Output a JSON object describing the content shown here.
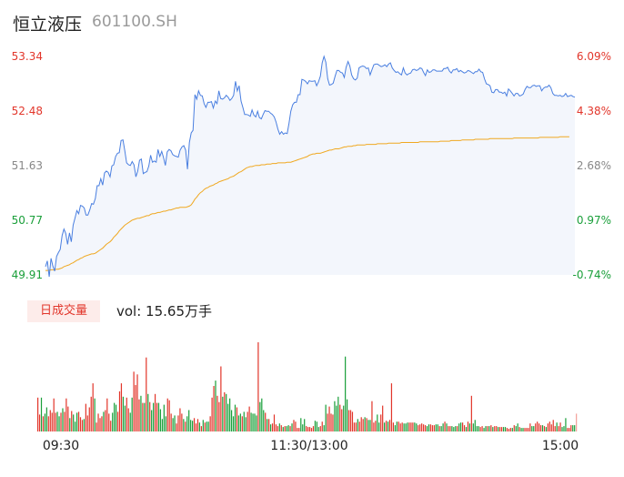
{
  "header": {
    "name": "恒立液压",
    "code": "601100.SH"
  },
  "volume_panel": {
    "tag": "日成交量",
    "label": "vol: 15.65万手"
  },
  "colors": {
    "up": "#e2362b",
    "down": "#1a9f3a",
    "neutral": "#888888",
    "price_line": "#4a7fe0",
    "avg_line": "#f0a820",
    "area": "#f3f6fc"
  },
  "chart_data": {
    "type": "line",
    "price_ticks": [
      "53.34",
      "52.48",
      "51.63",
      "50.77",
      "49.91"
    ],
    "pct_ticks": [
      "6.09%",
      "4.38%",
      "2.68%",
      "0.97%",
      "-0.74%"
    ],
    "time_ticks": [
      "09:30",
      "11:30/13:00",
      "15:00"
    ],
    "ylim": [
      49.91,
      53.34
    ],
    "series": [
      {
        "values": [
          50.04,
          50.13,
          49.88,
          50.17,
          50.05,
          49.97,
          50.2,
          50.26,
          50.31,
          50.53,
          50.63,
          50.56,
          50.39,
          50.57,
          50.43,
          50.69,
          50.8,
          50.92,
          50.87,
          51.0,
          50.99,
          50.96,
          50.85,
          50.85,
          50.93,
          51.03,
          51.02,
          51.11,
          51.31,
          51.31,
          51.42,
          51.32,
          51.51,
          51.54,
          51.52,
          51.45,
          51.62,
          51.64,
          51.77,
          51.82,
          51.83,
          52.02,
          52.03,
          51.86,
          51.67,
          51.64,
          51.63,
          51.69,
          51.64,
          51.45,
          51.54,
          51.71,
          51.73,
          51.5,
          51.52,
          51.53,
          51.62,
          51.79,
          51.68,
          51.7,
          51.68,
          51.88,
          51.77,
          51.85,
          51.75,
          51.63,
          51.84,
          51.88,
          51.86,
          51.8,
          51.78,
          51.77,
          51.76,
          51.87,
          51.92,
          51.94,
          51.87,
          51.57,
          51.99,
          52.14,
          52.18,
          52.74,
          52.67,
          52.8,
          52.73,
          52.72,
          52.6,
          52.54,
          52.62,
          52.62,
          52.63,
          52.53,
          52.64,
          52.6,
          52.8,
          52.68,
          52.67,
          52.69,
          52.73,
          52.7,
          52.65,
          52.68,
          52.73,
          52.95,
          52.8,
          52.88,
          52.64,
          52.54,
          52.43,
          52.43,
          52.42,
          52.4,
          52.5,
          52.42,
          52.39,
          52.48,
          52.38,
          52.36,
          52.43,
          52.49,
          52.48,
          52.48,
          52.45,
          52.43,
          52.39,
          52.31,
          52.2,
          52.12,
          52.16,
          52.12,
          52.14,
          52.13,
          52.29,
          52.48,
          52.58,
          52.62,
          52.62,
          52.74,
          52.74,
          52.98,
          52.97,
          52.95,
          52.91,
          52.96,
          52.95,
          52.95,
          52.96,
          52.88,
          52.94,
          53.03,
          53.24,
          53.34,
          53.25,
          52.99,
          52.89,
          52.9,
          52.92,
          53.03,
          53.12,
          53.12,
          53.09,
          53.08,
          53.01,
          53.17,
          53.26,
          53.19,
          53.05,
          52.99,
          52.97,
          53.0,
          53.16,
          53.18,
          53.19,
          53.18,
          53.15,
          53.16,
          53.05,
          53.13,
          53.21,
          53.22,
          53.22,
          53.2,
          53.18,
          53.19,
          53.21,
          53.18,
          53.22,
          53.24,
          53.16,
          53.12,
          53.09,
          53.1,
          53.07,
          53.05,
          53.16,
          53.08,
          53.05,
          53.07,
          53.08,
          53.13,
          53.14,
          53.12,
          53.13,
          53.16,
          53.15,
          53.09,
          53.04,
          53.13,
          53.09,
          53.1,
          53.13,
          53.13,
          53.11,
          53.11,
          53.11,
          53.11,
          53.15,
          53.15,
          53.17,
          53.11,
          53.08,
          53.13,
          53.13,
          53.15,
          53.1,
          53.12,
          53.1,
          53.08,
          53.09,
          53.12,
          53.11,
          53.09,
          53.07,
          53.1,
          53.1,
          53.14,
          53.1,
          53.09,
          52.99,
          52.91,
          52.9,
          52.88,
          52.78,
          52.77,
          52.82,
          52.82,
          52.78,
          52.78,
          52.76,
          52.78,
          52.72,
          52.83,
          52.8,
          52.76,
          52.72,
          52.76,
          52.76,
          52.72,
          52.73,
          52.75,
          52.82,
          52.87,
          52.85,
          52.85,
          52.88,
          52.89,
          52.87,
          52.88,
          52.88,
          52.8,
          52.84,
          52.86,
          52.86,
          52.89,
          52.85,
          52.76,
          52.73,
          52.73,
          52.72,
          52.73,
          52.71,
          52.72,
          52.76,
          52.71,
          52.72,
          52.73,
          52.71,
          52.7
        ]
      },
      {
        "values": [
          49.98,
          49.98,
          49.98,
          49.99,
          49.99,
          49.99,
          50.0,
          50.0,
          50.01,
          50.02,
          50.04,
          50.05,
          50.06,
          50.07,
          50.09,
          50.1,
          50.12,
          50.14,
          50.15,
          50.17,
          50.18,
          50.2,
          50.21,
          50.22,
          50.23,
          50.24,
          50.24,
          50.25,
          50.27,
          50.29,
          50.31,
          50.33,
          50.36,
          50.39,
          50.41,
          50.43,
          50.46,
          50.5,
          50.53,
          50.56,
          50.6,
          50.63,
          50.66,
          50.69,
          50.71,
          50.73,
          50.75,
          50.77,
          50.78,
          50.79,
          50.8,
          50.8,
          50.81,
          50.82,
          50.83,
          50.84,
          50.84,
          50.86,
          50.87,
          50.87,
          50.88,
          50.89,
          50.89,
          50.9,
          50.91,
          50.91,
          50.92,
          50.93,
          50.93,
          50.94,
          50.95,
          50.96,
          50.96,
          50.97,
          50.97,
          50.97,
          50.97,
          50.98,
          50.99,
          51.01,
          51.05,
          51.1,
          51.13,
          51.17,
          51.2,
          51.22,
          51.25,
          51.27,
          51.28,
          51.3,
          51.31,
          51.32,
          51.34,
          51.35,
          51.37,
          51.38,
          51.39,
          51.4,
          51.41,
          51.42,
          51.44,
          51.45,
          51.46,
          51.48,
          51.5,
          51.52,
          51.53,
          51.55,
          51.57,
          51.59,
          51.6,
          51.61,
          51.61,
          51.62,
          51.63,
          51.63,
          51.63,
          51.64,
          51.64,
          51.64,
          51.65,
          51.65,
          51.65,
          51.66,
          51.66,
          51.66,
          51.67,
          51.67,
          51.67,
          51.67,
          51.67,
          51.68,
          51.68,
          51.68,
          51.69,
          51.7,
          51.71,
          51.72,
          51.73,
          51.74,
          51.75,
          51.76,
          51.77,
          51.79,
          51.8,
          51.81,
          51.81,
          51.82,
          51.82,
          51.82,
          51.83,
          51.84,
          51.85,
          51.86,
          51.87,
          51.87,
          51.88,
          51.89,
          51.89,
          51.89,
          51.9,
          51.91,
          51.92,
          51.92,
          51.93,
          51.93,
          51.93,
          51.94,
          51.94,
          51.95,
          51.95,
          51.95,
          51.95,
          51.95,
          51.96,
          51.96,
          51.96,
          51.96,
          51.96,
          51.96,
          51.97,
          51.97,
          51.97,
          51.97,
          51.97,
          51.97,
          51.98,
          51.98,
          51.98,
          51.98,
          51.98,
          51.98,
          51.98,
          51.99,
          51.99,
          51.99,
          51.99,
          51.99,
          51.99,
          51.99,
          51.99,
          51.99,
          51.99,
          52.0,
          52.0,
          52.0,
          52.0,
          52.0,
          52.0,
          52.0,
          52.0,
          52.0,
          52.0,
          52.0,
          52.01,
          52.01,
          52.01,
          52.01,
          52.01,
          52.01,
          52.02,
          52.02,
          52.02,
          52.02,
          52.02,
          52.02,
          52.03,
          52.03,
          52.03,
          52.03,
          52.03,
          52.03,
          52.03,
          52.04,
          52.04,
          52.04,
          52.04,
          52.04,
          52.04,
          52.04,
          52.04,
          52.05,
          52.05,
          52.05,
          52.05,
          52.05,
          52.05,
          52.05,
          52.05,
          52.05,
          52.05,
          52.05,
          52.05,
          52.05,
          52.06,
          52.06,
          52.06,
          52.06,
          52.06,
          52.06,
          52.06,
          52.06,
          52.06,
          52.06,
          52.06,
          52.06,
          52.06,
          52.06,
          52.07,
          52.07,
          52.07,
          52.07,
          52.07,
          52.07,
          52.07,
          52.07,
          52.07,
          52.07,
          52.07,
          52.08,
          52.08,
          52.08,
          52.08,
          52.08,
          52.08
        ]
      }
    ],
    "volume": [
      0.38,
      0.19,
      0.38,
      0.17,
      0.2,
      0.27,
      0.17,
      0.24,
      0.21,
      0.37,
      0.21,
      0.22,
      0.17,
      0.21,
      0.26,
      0.22,
      0.37,
      0.28,
      0.15,
      0.23,
      0.19,
      0.11,
      0.21,
      0.22,
      0.16,
      0.13,
      0.14,
      0.31,
      0.18,
      0.27,
      0.39,
      0.54,
      0.37,
      0.1,
      0.2,
      0.15,
      0.17,
      0.22,
      0.24,
      0.37,
      0.2,
      0.12,
      0.21,
      0.32,
      0.3,
      0.22,
      0.45,
      0.54,
      0.39,
      0.29,
      0.38,
      0.26,
      0.21,
      0.38,
      0.67,
      0.52,
      0.64,
      0.36,
      0.4,
      0.32,
      0.32,
      0.83,
      0.42,
      0.33,
      0.24,
      0.32,
      0.42,
      0.32,
      0.32,
      0.25,
      0.14,
      0.3,
      0.17,
      0.37,
      0.35,
      0.2,
      0.15,
      0.18,
      0.09,
      0.18,
      0.26,
      0.2,
      0.14,
      0.11,
      0.17,
      0.24,
      0.13,
      0.12,
      0.15,
      0.09,
      0.14,
      0.1,
      0.06,
      0.13,
      0.1,
      0.11,
      0.11,
      0.17,
      0.38,
      0.51,
      0.57,
      0.4,
      0.33,
      0.73,
      0.39,
      0.44,
      0.42,
      0.31,
      0.37,
      0.24,
      0.17,
      0.3,
      0.27,
      0.18,
      0.2,
      0.17,
      0.22,
      0.16,
      0.22,
      0.28,
      0.21,
      0.2,
      0.2,
      0.18,
      1.0,
      0.33,
      0.37,
      0.24,
      0.21,
      0.14,
      0.14,
      0.08,
      0.09,
      0.19,
      0.08,
      0.06,
      0.09,
      0.07,
      0.05,
      0.06,
      0.06,
      0.07,
      0.06,
      0.09,
      0.13,
      0.11,
      0.04,
      0.04,
      0.15,
      0.08,
      0.14,
      0.06,
      0.05,
      0.05,
      0.04,
      0.06,
      0.12,
      0.11,
      0.05,
      0.06,
      0.11,
      0.07,
      0.3,
      0.2,
      0.28,
      0.2,
      0.19,
      0.34,
      0.29,
      0.39,
      0.3,
      0.25,
      0.29,
      0.84,
      0.36,
      0.24,
      0.24,
      0.22,
      0.1,
      0.1,
      0.14,
      0.11,
      0.16,
      0.14,
      0.16,
      0.15,
      0.13,
      0.13,
      0.34,
      0.1,
      0.12,
      0.19,
      0.1,
      0.19,
      0.29,
      0.1,
      0.12,
      0.11,
      0.13,
      0.54,
      0.1,
      0.07,
      0.11,
      0.11,
      0.09,
      0.1,
      0.09,
      0.09,
      0.1,
      0.1,
      0.1,
      0.1,
      0.1,
      0.09,
      0.07,
      0.08,
      0.09,
      0.08,
      0.07,
      0.06,
      0.08,
      0.08,
      0.07,
      0.07,
      0.08,
      0.08,
      0.06,
      0.06,
      0.09,
      0.11,
      0.09,
      0.06,
      0.06,
      0.06,
      0.05,
      0.06,
      0.06,
      0.09,
      0.1,
      0.1,
      0.07,
      0.05,
      0.11,
      0.09,
      0.4,
      0.09,
      0.13,
      0.06,
      0.06,
      0.05,
      0.06,
      0.04,
      0.06,
      0.06,
      0.06,
      0.07,
      0.05,
      0.06,
      0.06,
      0.05,
      0.05,
      0.05,
      0.05,
      0.05,
      0.04,
      0.03,
      0.04,
      0.04,
      0.07,
      0.06,
      0.09,
      0.05,
      0.04,
      0.04,
      0.04,
      0.04,
      0.04,
      0.09,
      0.06,
      0.06,
      0.09,
      0.11,
      0.09,
      0.07,
      0.07,
      0.06,
      0.05,
      0.09,
      0.11,
      0.08,
      0.13,
      0.06,
      0.1,
      0.06,
      0.1,
      0.05,
      0.06,
      0.15,
      0.04,
      0.04,
      0.07,
      0.07,
      0.07,
      0.2
    ],
    "volume_up": [
      1,
      1,
      0,
      1,
      0,
      0,
      1,
      1,
      1,
      1,
      1,
      0,
      0,
      1,
      0,
      1,
      1,
      1,
      0,
      1,
      0,
      0,
      0,
      1,
      1,
      1,
      0,
      1,
      1,
      1,
      1,
      1,
      0,
      1,
      1,
      1,
      1,
      0,
      1,
      1,
      1,
      1,
      0,
      0,
      0,
      1,
      1,
      1,
      0,
      0,
      1,
      1,
      0,
      0,
      1,
      1,
      1,
      1,
      0,
      1,
      0,
      1,
      0,
      1,
      0,
      0,
      1,
      1,
      0,
      0,
      0,
      0,
      0,
      1,
      1,
      1,
      0,
      0,
      1,
      1,
      1,
      1,
      0,
      1,
      0,
      0,
      0,
      0,
      1,
      1,
      1,
      0,
      1,
      0,
      1,
      0,
      0,
      1,
      1,
      1,
      0,
      1,
      1,
      1,
      0,
      1,
      0,
      0,
      0,
      0,
      0,
      0,
      1,
      0,
      0,
      1,
      0,
      0,
      1,
      1,
      0,
      0,
      0,
      0,
      1,
      0,
      0,
      0,
      1,
      0,
      1,
      0,
      1,
      1,
      1,
      1,
      0,
      1,
      0,
      1,
      0,
      0,
      1,
      0,
      1,
      1,
      1,
      1,
      0,
      0,
      0,
      1,
      1,
      1,
      1,
      1,
      0,
      0,
      0,
      1,
      1,
      0,
      0,
      1,
      1,
      1,
      1,
      0,
      0,
      0,
      1,
      1,
      0,
      0,
      0,
      1,
      1,
      1,
      1,
      1,
      0,
      1,
      1,
      1,
      0,
      1,
      0,
      0,
      1,
      1,
      1,
      0,
      0,
      1,
      1,
      0,
      1,
      0,
      1,
      1,
      1,
      0,
      0,
      1,
      1,
      1,
      0,
      0,
      0,
      1,
      1,
      1,
      0,
      0,
      1,
      1,
      1,
      1,
      1,
      0,
      0,
      1,
      1,
      1,
      0,
      0,
      1,
      0,
      0,
      1,
      0,
      1,
      1,
      0,
      0,
      0,
      1,
      0,
      0,
      1,
      1,
      0,
      1,
      0,
      1,
      0,
      0,
      0,
      0,
      1,
      1,
      0,
      0,
      1,
      0,
      1,
      0,
      1,
      1,
      0,
      1,
      1,
      0,
      0,
      1,
      1,
      1,
      0,
      1,
      0,
      0,
      1,
      0,
      0,
      1,
      1,
      1,
      1,
      0,
      0,
      1,
      1,
      1,
      1,
      0,
      1,
      0,
      1,
      1,
      1,
      1,
      1,
      0,
      1,
      1,
      0,
      0,
      0,
      1,
      1,
      1
    ]
  }
}
